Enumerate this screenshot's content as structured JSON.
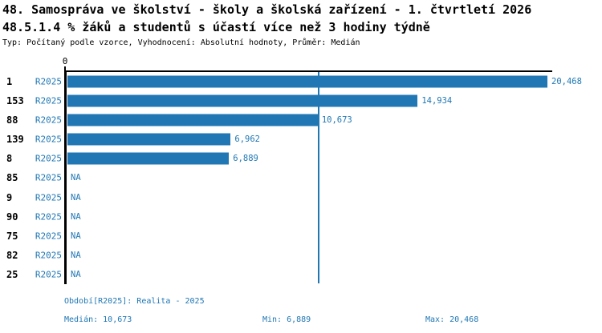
{
  "header": {
    "title_line1": "48. Samospráva ve školství - školy a školská zařízení - 1. čtvrtletí 2026",
    "title_line2": "48.5.1.4 % žáků a studentů s účastí více než 3 hodiny týdně",
    "meta_line": "Typ: Počítaný podle vzorce, Vyhodnocení: Absolutní hodnoty, Průměr: Medián"
  },
  "colors": {
    "bar": "#2077b4",
    "blue_text": "#2077b4",
    "axis": "#000000",
    "background": "#ffffff"
  },
  "chart_data": {
    "type": "bar",
    "orientation": "horizontal",
    "title": "48.5.1.4 % žáků a studentů s účastí více než 3 hodiny týdně",
    "xlabel": "",
    "ylabel": "",
    "axis_tick_label": "0",
    "axis_max": 20468,
    "grid": false,
    "legend_position": "bottom",
    "categories": [
      "1",
      "153",
      "88",
      "139",
      "8",
      "85",
      "9",
      "90",
      "75",
      "82",
      "25"
    ],
    "series": [
      {
        "name": "R2025",
        "values": [
          20468,
          14934,
          10673,
          6962,
          6889,
          null,
          null,
          null,
          null,
          null,
          null
        ]
      }
    ],
    "rows": [
      {
        "category": "1",
        "period": "R2025",
        "value": 20468,
        "display": "20,468"
      },
      {
        "category": "153",
        "period": "R2025",
        "value": 14934,
        "display": "14,934"
      },
      {
        "category": "88",
        "period": "R2025",
        "value": 10673,
        "display": "10,673"
      },
      {
        "category": "139",
        "period": "R2025",
        "value": 6962,
        "display": "6,962"
      },
      {
        "category": "8",
        "period": "R2025",
        "value": 6889,
        "display": "6,889"
      },
      {
        "category": "85",
        "period": "R2025",
        "value": null,
        "display": "NA"
      },
      {
        "category": "9",
        "period": "R2025",
        "value": null,
        "display": "NA"
      },
      {
        "category": "90",
        "period": "R2025",
        "value": null,
        "display": "NA"
      },
      {
        "category": "75",
        "period": "R2025",
        "value": null,
        "display": "NA"
      },
      {
        "category": "82",
        "period": "R2025",
        "value": null,
        "display": "NA"
      },
      {
        "category": "25",
        "period": "R2025",
        "value": null,
        "display": "NA"
      }
    ],
    "median": 10673,
    "min": 6889,
    "max": 20468
  },
  "footer": {
    "period_label": "Období[R2025]: Realita - 2025",
    "median_label": "Medián: 10,673",
    "min_label": "Min: 6,889",
    "max_label": "Max: 20,468"
  }
}
